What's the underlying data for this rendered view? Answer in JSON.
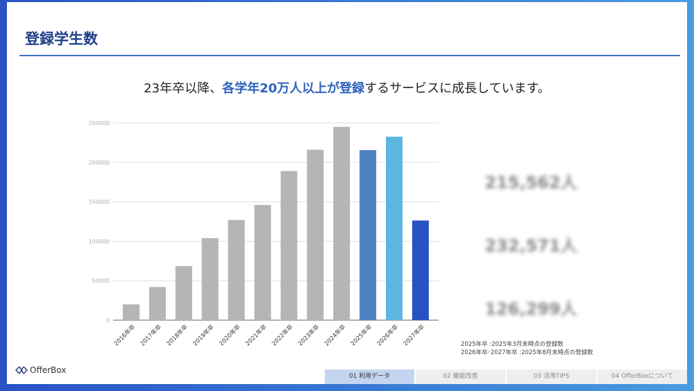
{
  "title": "登録学生数",
  "headline": {
    "pre": "23年卒以降、",
    "highlight": "各学年20万人以上が登録",
    "post": "するサービスに成長しています。"
  },
  "chart_data": {
    "type": "bar",
    "categories": [
      "2016年卒",
      "2017年卒",
      "2018年卒",
      "2019年卒",
      "2020年卒",
      "2021年卒",
      "2022年卒",
      "2023年卒",
      "2024年卒",
      "2025年卒",
      "2026年卒",
      "2027年卒"
    ],
    "values": [
      20000,
      42000,
      68500,
      104000,
      127000,
      146000,
      189000,
      216000,
      245000,
      215562,
      232571,
      126299
    ],
    "colors": [
      "#b5b5b5",
      "#b5b5b5",
      "#b5b5b5",
      "#b5b5b5",
      "#b5b5b5",
      "#b5b5b5",
      "#b5b5b5",
      "#b5b5b5",
      "#b5b5b5",
      "#4f82c2",
      "#5bb7e2",
      "#2852c4"
    ],
    "yticks": [
      0,
      50000,
      100000,
      150000,
      200000,
      250000
    ],
    "ylim": [
      0,
      250000
    ],
    "grid": true,
    "title": "",
    "xlabel": "",
    "ylabel": ""
  },
  "summary": [
    {
      "label": "2025年卒",
      "value": "215,562人",
      "color": "#4f82c2"
    },
    {
      "label": "2026年卒",
      "value": "232,571人",
      "color": "#5bb7e2"
    },
    {
      "label": "2027年卒",
      "value": "126,299人",
      "color": "#2852c4"
    }
  ],
  "notes": [
    "2025年卒 :2025年3月末時点の登録数",
    "2026年卒･2027年卒 :2025年8月末時点の登録数"
  ],
  "logo": "OfferBox",
  "tabs": [
    "01 利用データ",
    "02 機能改善",
    "03 活用TIPS",
    "04 OfferBoxについて"
  ]
}
